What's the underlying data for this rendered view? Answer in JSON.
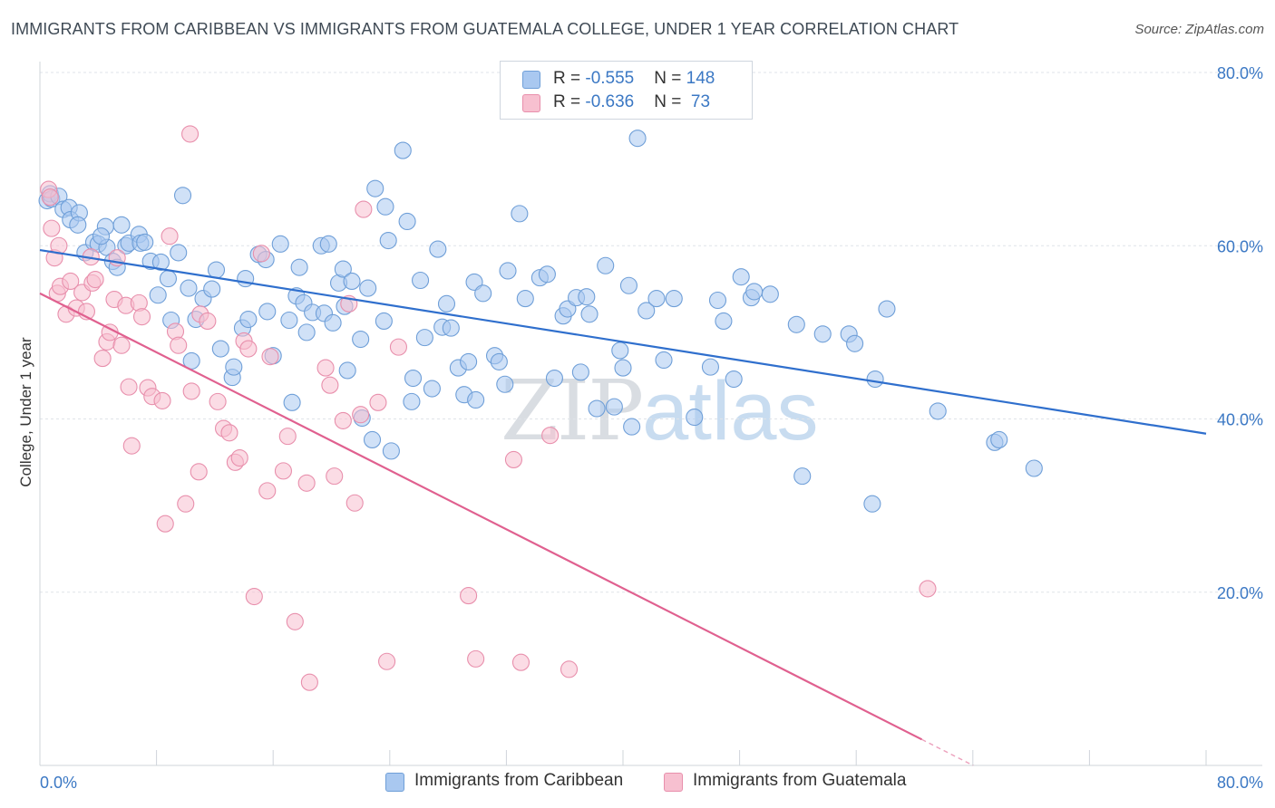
{
  "title": "IMMIGRANTS FROM CARIBBEAN VS IMMIGRANTS FROM GUATEMALA COLLEGE, UNDER 1 YEAR CORRELATION CHART",
  "source": "Source: ZipAtlas.com",
  "watermark": {
    "zip": "ZIP",
    "atlas": "atlas"
  },
  "legend": [
    {
      "r_label": "R = ",
      "r_value": "-0.555",
      "n_label": "N = ",
      "n_value": "148"
    },
    {
      "r_label": "R = ",
      "r_value": "-0.636",
      "n_label": "N = ",
      "n_value": " 73"
    }
  ],
  "colors": {
    "blue_fill": "#a9c8f0",
    "blue_stroke": "#6f9fd8",
    "blue_line": "#2f6fcd",
    "pink_fill": "#f7c0d0",
    "pink_stroke": "#e88fac",
    "pink_line": "#e0608f",
    "grid": "#dfe3e8",
    "tick_text": "#3b78c4"
  },
  "chart_data": {
    "type": "scatter",
    "title": "IMMIGRANTS FROM CARIBBEAN VS IMMIGRANTS FROM GUATEMALA COLLEGE, UNDER 1 YEAR CORRELATION CHART",
    "xlabel": "",
    "ylabel": "College, Under 1 year",
    "xlim": [
      0,
      80
    ],
    "ylim": [
      0,
      80
    ],
    "x_tick_labels": [
      "0.0%",
      "80.0%"
    ],
    "y_ticks": [
      20,
      40,
      60,
      80
    ],
    "y_tick_labels": [
      "20.0%",
      "40.0%",
      "60.0%",
      "80.0%"
    ],
    "grid": true,
    "legend_position": "top-center",
    "series": [
      {
        "name": "Immigrants from Caribbean",
        "color": "#a9c8f0",
        "trend": {
          "x": [
            0,
            80
          ],
          "y": [
            59.5,
            38.3
          ]
        },
        "points": [
          [
            0.5,
            65.2
          ],
          [
            0.7,
            66.0
          ],
          [
            0.8,
            65.4
          ],
          [
            1.3,
            65.7
          ],
          [
            1.6,
            64.2
          ],
          [
            2.0,
            64.4
          ],
          [
            2.1,
            63.0
          ],
          [
            2.7,
            63.8
          ],
          [
            2.6,
            62.4
          ],
          [
            3.1,
            59.2
          ],
          [
            3.7,
            60.4
          ],
          [
            4.0,
            60.2
          ],
          [
            4.6,
            59.8
          ],
          [
            4.5,
            62.2
          ],
          [
            4.2,
            61.1
          ],
          [
            5.0,
            58.2
          ],
          [
            5.3,
            57.5
          ],
          [
            5.6,
            62.4
          ],
          [
            5.9,
            60.0
          ],
          [
            6.1,
            60.3
          ],
          [
            6.8,
            61.3
          ],
          [
            6.9,
            60.3
          ],
          [
            7.2,
            60.4
          ],
          [
            7.6,
            58.2
          ],
          [
            8.1,
            54.3
          ],
          [
            8.3,
            58.1
          ],
          [
            8.8,
            56.2
          ],
          [
            9.0,
            51.4
          ],
          [
            9.5,
            59.2
          ],
          [
            9.8,
            65.8
          ],
          [
            10.2,
            55.1
          ],
          [
            10.4,
            46.7
          ],
          [
            10.7,
            51.5
          ],
          [
            11.2,
            53.9
          ],
          [
            11.8,
            55.0
          ],
          [
            12.1,
            57.2
          ],
          [
            12.4,
            48.1
          ],
          [
            13.2,
            44.8
          ],
          [
            13.3,
            46.0
          ],
          [
            13.9,
            50.5
          ],
          [
            14.1,
            56.2
          ],
          [
            14.3,
            51.5
          ],
          [
            15.0,
            59.0
          ],
          [
            15.5,
            58.4
          ],
          [
            15.6,
            52.4
          ],
          [
            16.0,
            47.3
          ],
          [
            16.5,
            60.2
          ],
          [
            17.1,
            51.4
          ],
          [
            17.3,
            41.9
          ],
          [
            17.6,
            54.2
          ],
          [
            17.8,
            57.5
          ],
          [
            18.1,
            53.4
          ],
          [
            18.3,
            50.0
          ],
          [
            18.7,
            52.3
          ],
          [
            19.3,
            60.0
          ],
          [
            19.5,
            52.2
          ],
          [
            19.8,
            60.2
          ],
          [
            20.1,
            51.1
          ],
          [
            20.5,
            55.7
          ],
          [
            20.8,
            57.3
          ],
          [
            20.9,
            53.0
          ],
          [
            21.1,
            45.6
          ],
          [
            21.4,
            55.9
          ],
          [
            22.0,
            49.2
          ],
          [
            22.1,
            40.1
          ],
          [
            22.5,
            55.1
          ],
          [
            23.0,
            66.6
          ],
          [
            22.8,
            37.6
          ],
          [
            23.6,
            51.3
          ],
          [
            23.7,
            64.5
          ],
          [
            23.9,
            60.6
          ],
          [
            24.1,
            36.3
          ],
          [
            24.9,
            71.0
          ],
          [
            25.2,
            62.8
          ],
          [
            25.5,
            42.0
          ],
          [
            25.6,
            44.7
          ],
          [
            26.1,
            56.0
          ],
          [
            26.4,
            49.4
          ],
          [
            26.9,
            43.5
          ],
          [
            27.3,
            59.6
          ],
          [
            27.6,
            50.6
          ],
          [
            27.9,
            53.3
          ],
          [
            28.2,
            50.5
          ],
          [
            28.7,
            45.9
          ],
          [
            29.1,
            42.8
          ],
          [
            29.4,
            46.6
          ],
          [
            29.8,
            55.8
          ],
          [
            29.9,
            42.2
          ],
          [
            30.4,
            54.5
          ],
          [
            31.2,
            47.3
          ],
          [
            31.5,
            46.6
          ],
          [
            31.9,
            44.0
          ],
          [
            32.1,
            57.1
          ],
          [
            32.9,
            63.7
          ],
          [
            33.3,
            53.9
          ],
          [
            34.3,
            56.3
          ],
          [
            34.8,
            56.7
          ],
          [
            35.3,
            44.7
          ],
          [
            35.9,
            51.9
          ],
          [
            36.2,
            52.7
          ],
          [
            36.8,
            54.0
          ],
          [
            37.1,
            45.4
          ],
          [
            37.5,
            54.1
          ],
          [
            37.7,
            52.1
          ],
          [
            38.2,
            41.2
          ],
          [
            38.8,
            57.7
          ],
          [
            39.4,
            41.4
          ],
          [
            39.8,
            47.9
          ],
          [
            40.0,
            45.9
          ],
          [
            40.4,
            55.4
          ],
          [
            40.6,
            39.1
          ],
          [
            41.0,
            72.4
          ],
          [
            41.6,
            52.5
          ],
          [
            42.3,
            53.9
          ],
          [
            42.8,
            46.8
          ],
          [
            43.5,
            53.9
          ],
          [
            44.9,
            40.2
          ],
          [
            46.0,
            46.0
          ],
          [
            46.5,
            53.7
          ],
          [
            46.9,
            51.3
          ],
          [
            47.6,
            44.6
          ],
          [
            48.1,
            56.4
          ],
          [
            48.8,
            54.0
          ],
          [
            49.0,
            54.7
          ],
          [
            50.1,
            54.4
          ],
          [
            51.9,
            50.9
          ],
          [
            52.3,
            33.4
          ],
          [
            53.7,
            49.8
          ],
          [
            55.5,
            49.8
          ],
          [
            55.9,
            48.7
          ],
          [
            57.3,
            44.6
          ],
          [
            58.1,
            52.7
          ],
          [
            61.6,
            40.9
          ],
          [
            65.5,
            37.3
          ],
          [
            65.8,
            37.6
          ],
          [
            68.2,
            34.3
          ],
          [
            57.1,
            30.2
          ]
        ]
      },
      {
        "name": "Immigrants from Guatemala",
        "color": "#f7c0d0",
        "trend": {
          "x": [
            0,
            60.5
          ],
          "y": [
            54.5,
            3.0
          ]
        },
        "points": [
          [
            0.6,
            66.5
          ],
          [
            0.7,
            65.6
          ],
          [
            0.8,
            62.0
          ],
          [
            1.0,
            58.6
          ],
          [
            1.2,
            54.5
          ],
          [
            1.4,
            55.3
          ],
          [
            1.8,
            52.1
          ],
          [
            2.1,
            55.9
          ],
          [
            2.5,
            52.8
          ],
          [
            2.9,
            54.6
          ],
          [
            3.2,
            52.4
          ],
          [
            3.5,
            58.7
          ],
          [
            3.6,
            55.7
          ],
          [
            3.8,
            56.1
          ],
          [
            4.3,
            47.0
          ],
          [
            4.6,
            48.9
          ],
          [
            4.8,
            50.0
          ],
          [
            5.1,
            53.8
          ],
          [
            5.3,
            58.6
          ],
          [
            5.6,
            48.5
          ],
          [
            5.9,
            53.1
          ],
          [
            6.1,
            43.7
          ],
          [
            6.3,
            36.9
          ],
          [
            6.8,
            53.4
          ],
          [
            7.0,
            51.8
          ],
          [
            7.4,
            43.6
          ],
          [
            7.7,
            42.6
          ],
          [
            8.4,
            42.1
          ],
          [
            8.6,
            27.9
          ],
          [
            8.9,
            61.1
          ],
          [
            9.3,
            50.1
          ],
          [
            9.5,
            48.5
          ],
          [
            10.0,
            30.2
          ],
          [
            10.4,
            43.2
          ],
          [
            10.9,
            33.9
          ],
          [
            11.0,
            52.1
          ],
          [
            11.5,
            51.3
          ],
          [
            12.2,
            42.0
          ],
          [
            12.6,
            38.9
          ],
          [
            13.0,
            38.4
          ],
          [
            13.4,
            35.0
          ],
          [
            13.7,
            35.5
          ],
          [
            14.0,
            49.0
          ],
          [
            14.3,
            48.1
          ],
          [
            14.7,
            19.5
          ],
          [
            15.2,
            59.1
          ],
          [
            15.6,
            31.7
          ],
          [
            15.8,
            47.2
          ],
          [
            16.7,
            34.0
          ],
          [
            17.0,
            38.0
          ],
          [
            17.5,
            16.6
          ],
          [
            18.3,
            32.6
          ],
          [
            18.5,
            9.6
          ],
          [
            19.6,
            45.9
          ],
          [
            19.9,
            43.9
          ],
          [
            20.2,
            33.4
          ],
          [
            20.8,
            39.8
          ],
          [
            21.2,
            53.3
          ],
          [
            21.6,
            30.3
          ],
          [
            22.0,
            40.5
          ],
          [
            22.2,
            64.2
          ],
          [
            23.2,
            41.9
          ],
          [
            23.8,
            12.0
          ],
          [
            24.6,
            48.3
          ],
          [
            29.4,
            19.6
          ],
          [
            29.9,
            12.3
          ],
          [
            32.5,
            35.3
          ],
          [
            33.0,
            11.9
          ],
          [
            35.0,
            38.1
          ],
          [
            36.3,
            11.1
          ],
          [
            60.9,
            20.4
          ],
          [
            10.3,
            72.9
          ],
          [
            1.3,
            60.0
          ]
        ]
      }
    ]
  }
}
